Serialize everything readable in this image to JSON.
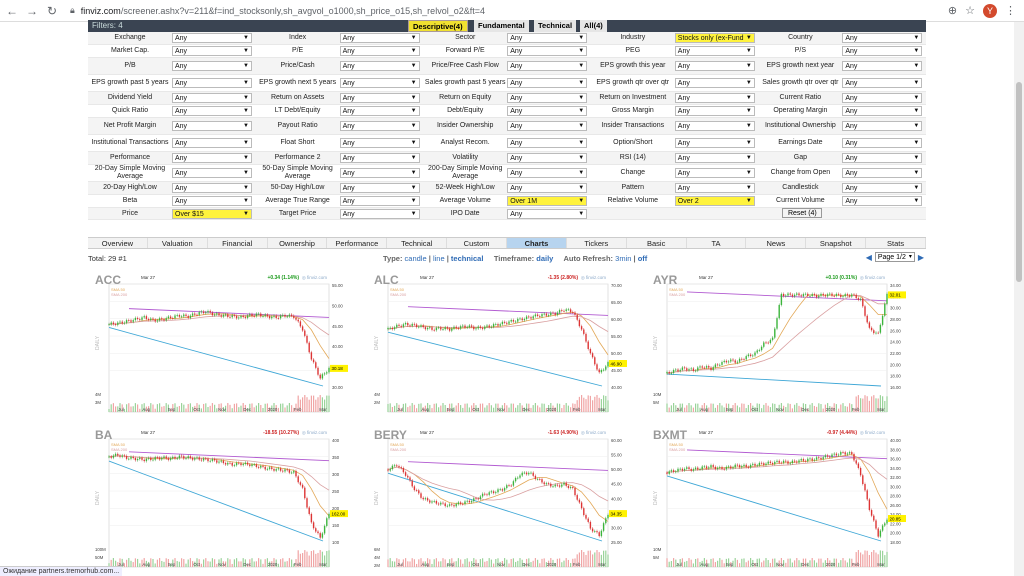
{
  "browser": {
    "url_host": "finviz.com",
    "url_path": "/screener.ashx?v=211&f=ind_stocksonly,sh_avgvol_o1000,sh_price_o15,sh_relvol_o2&ft=4",
    "avatar_letter": "Y",
    "status_text": "Ожидание partners.tremorhub.com..."
  },
  "filters_header": {
    "label": "Filters: 4",
    "tabs": [
      {
        "label": "Descriptive(4)",
        "active": true
      },
      {
        "label": "Fundamental",
        "active": false
      },
      {
        "label": "Technical",
        "active": false
      },
      {
        "label": "All(4)",
        "active": false
      }
    ]
  },
  "filter_rows": [
    [
      {
        "label": "Exchange",
        "value": "Any"
      },
      {
        "label": "Index",
        "value": "Any"
      },
      {
        "label": "Sector",
        "value": "Any"
      },
      {
        "label": "Industry",
        "value": "Stocks only (ex-Fund",
        "hl": true
      },
      {
        "label": "Country",
        "value": "Any"
      }
    ],
    [
      {
        "label": "Market Cap.",
        "value": "Any"
      },
      {
        "label": "P/E",
        "value": "Any"
      },
      {
        "label": "Forward P/E",
        "value": "Any"
      },
      {
        "label": "PEG",
        "value": "Any"
      },
      {
        "label": "P/S",
        "value": "Any"
      }
    ],
    [
      {
        "label": "P/B",
        "value": "Any"
      },
      {
        "label": "Price/Cash",
        "value": "Any"
      },
      {
        "label": "Price/Free Cash Flow",
        "value": "Any"
      },
      {
        "label": "EPS growth this year",
        "value": "Any"
      },
      {
        "label": "EPS growth next year",
        "value": "Any"
      }
    ],
    [
      {
        "label": "EPS growth past 5 years",
        "value": "Any"
      },
      {
        "label": "EPS growth next 5 years",
        "value": "Any"
      },
      {
        "label": "Sales growth past 5 years",
        "value": "Any"
      },
      {
        "label": "EPS growth qtr over qtr",
        "value": "Any"
      },
      {
        "label": "Sales growth qtr over qtr",
        "value": "Any"
      }
    ],
    [
      {
        "label": "Dividend Yield",
        "value": "Any"
      },
      {
        "label": "Return on Assets",
        "value": "Any"
      },
      {
        "label": "Return on Equity",
        "value": "Any"
      },
      {
        "label": "Return on Investment",
        "value": "Any"
      },
      {
        "label": "Current Ratio",
        "value": "Any"
      }
    ],
    [
      {
        "label": "Quick Ratio",
        "value": "Any"
      },
      {
        "label": "LT Debt/Equity",
        "value": "Any"
      },
      {
        "label": "Debt/Equity",
        "value": "Any"
      },
      {
        "label": "Gross Margin",
        "value": "Any"
      },
      {
        "label": "Operating Margin",
        "value": "Any"
      }
    ],
    [
      {
        "label": "Net Profit Margin",
        "value": "Any"
      },
      {
        "label": "Payout Ratio",
        "value": "Any"
      },
      {
        "label": "Insider Ownership",
        "value": "Any"
      },
      {
        "label": "Insider Transactions",
        "value": "Any"
      },
      {
        "label": "Institutional Ownership",
        "value": "Any"
      }
    ],
    [
      {
        "label": "Institutional Transactions",
        "value": "Any"
      },
      {
        "label": "Float Short",
        "value": "Any"
      },
      {
        "label": "Analyst Recom.",
        "value": "Any"
      },
      {
        "label": "Option/Short",
        "value": "Any"
      },
      {
        "label": "Earnings Date",
        "value": "Any"
      }
    ],
    [
      {
        "label": "Performance",
        "value": "Any"
      },
      {
        "label": "Performance 2",
        "value": "Any"
      },
      {
        "label": "Volatility",
        "value": "Any"
      },
      {
        "label": "RSI (14)",
        "value": "Any"
      },
      {
        "label": "Gap",
        "value": "Any"
      }
    ],
    [
      {
        "label": "20-Day Simple Moving Average",
        "value": "Any"
      },
      {
        "label": "50-Day Simple Moving Average",
        "value": "Any"
      },
      {
        "label": "200-Day Simple Moving Average",
        "value": "Any"
      },
      {
        "label": "Change",
        "value": "Any"
      },
      {
        "label": "Change from Open",
        "value": "Any"
      }
    ],
    [
      {
        "label": "20-Day High/Low",
        "value": "Any"
      },
      {
        "label": "50-Day High/Low",
        "value": "Any"
      },
      {
        "label": "52-Week High/Low",
        "value": "Any"
      },
      {
        "label": "Pattern",
        "value": "Any"
      },
      {
        "label": "Candlestick",
        "value": "Any"
      }
    ],
    [
      {
        "label": "Beta",
        "value": "Any"
      },
      {
        "label": "Average True Range",
        "value": "Any"
      },
      {
        "label": "Average Volume",
        "value": "Over 1M",
        "hl": true
      },
      {
        "label": "Relative Volume",
        "value": "Over 2",
        "hl": true
      },
      {
        "label": "Current Volume",
        "value": "Any"
      }
    ],
    [
      {
        "label": "Price",
        "value": "Over $15",
        "hl": true
      },
      {
        "label": "Target Price",
        "value": "Any"
      },
      {
        "label": "IPO Date",
        "value": "Any"
      }
    ]
  ],
  "reset_label": "Reset (4)",
  "view_tabs": [
    "Overview",
    "Valuation",
    "Financial",
    "Ownership",
    "Performance",
    "Technical",
    "Custom",
    "Charts",
    "Tickers",
    "Basic",
    "TA",
    "News",
    "Snapshot",
    "Stats"
  ],
  "active_view": "Charts",
  "info": {
    "total": "Total: 29 #1",
    "type_label": "Type:",
    "type_options": [
      "candle",
      "line",
      "technical"
    ],
    "type_active": "technical",
    "timeframe_label": "Timeframe:",
    "timeframe_value": "daily",
    "refresh_label": "Auto Refresh:",
    "refresh_value": "3min",
    "refresh_off": "off",
    "page": "Page 1/2"
  },
  "charts": [
    {
      "ticker": "ACC",
      "date": "Mar 27",
      "change": "+0.34 (1.14%)",
      "change_color": "#1a9a1a",
      "last": "30.18",
      "watermark": "finviz.com",
      "sma1": "SMA 50",
      "sma2": "SMA 200",
      "yticks": [
        "55.00",
        "50.00",
        "45.00",
        "40.00",
        "35.00",
        "30.00"
      ],
      "vticks": [
        "4M",
        "3M"
      ],
      "months": [
        "Jul",
        "Aug",
        "Sep",
        "Oct",
        "Nov",
        "Dec",
        "2020",
        "Feb",
        "Mar"
      ],
      "shape": [
        0.65,
        0.66,
        0.68,
        0.7,
        0.72,
        0.69,
        0.7,
        0.72,
        0.74,
        0.73,
        0.76,
        0.78,
        0.75,
        0.74,
        0.73,
        0.72,
        0.74,
        0.75,
        0.73,
        0.72,
        0.74,
        0.73,
        0.6,
        0.3,
        0.1,
        0.2
      ]
    },
    {
      "ticker": "ALC",
      "date": "Mar 27",
      "change": "-1.35 (2.80%)",
      "change_color": "#cc2222",
      "last": "46.90",
      "watermark": "finviz.com",
      "sma1": "SMA 50",
      "sma2": "SMA 200",
      "yticks": [
        "70.00",
        "65.00",
        "60.00",
        "55.00",
        "50.00",
        "45.00",
        "40.00"
      ],
      "vticks": [
        "4M",
        "2M"
      ],
      "months": [
        "Jul",
        "Aug",
        "Sep",
        "Oct",
        "Nov",
        "Dec",
        "2020",
        "Feb",
        "Mar"
      ],
      "shape": [
        0.6,
        0.63,
        0.65,
        0.64,
        0.62,
        0.6,
        0.61,
        0.6,
        0.62,
        0.63,
        0.61,
        0.62,
        0.64,
        0.66,
        0.68,
        0.7,
        0.72,
        0.74,
        0.75,
        0.76,
        0.8,
        0.78,
        0.6,
        0.35,
        0.15,
        0.25
      ]
    },
    {
      "ticker": "AYR",
      "date": "Mar 27",
      "change": "+0.10 (0.31%)",
      "change_color": "#1a9a1a",
      "last": "32.01",
      "watermark": "finviz.com",
      "sma1": "SMA 50",
      "sma2": "SMA 200",
      "yticks": [
        "34.00",
        "32.00",
        "30.00",
        "28.00",
        "26.00",
        "24.00",
        "22.00",
        "20.00",
        "18.00",
        "16.00"
      ],
      "vticks": [
        "10M",
        "5M"
      ],
      "months": [
        "Jul",
        "Aug",
        "Sep",
        "Oct",
        "Nov",
        "Dec",
        "2020",
        "Feb",
        "Mar"
      ],
      "shape": [
        0.15,
        0.18,
        0.2,
        0.18,
        0.22,
        0.2,
        0.25,
        0.28,
        0.27,
        0.32,
        0.35,
        0.45,
        0.5,
        0.95,
        0.95,
        0.95,
        0.95,
        0.94,
        0.95,
        0.95,
        0.94,
        0.95,
        0.9,
        0.6,
        0.55,
        0.95
      ]
    },
    {
      "ticker": "BA",
      "date": "Mar 27",
      "change": "-18.55 (10.27%)",
      "change_color": "#cc2222",
      "last": "162.00",
      "watermark": "finviz.com",
      "sma1": "SMA 50",
      "sma2": "SMA 200",
      "yticks": [
        "400",
        "350",
        "300",
        "250",
        "200",
        "150",
        "100"
      ],
      "vticks": [
        "100M",
        "50M"
      ],
      "months": [
        "Jul",
        "Aug",
        "Sep",
        "Oct",
        "Nov",
        "Dec",
        "2020",
        "Feb",
        "Mar"
      ],
      "shape": [
        0.88,
        0.9,
        0.87,
        0.86,
        0.85,
        0.86,
        0.87,
        0.86,
        0.88,
        0.87,
        0.86,
        0.85,
        0.84,
        0.82,
        0.8,
        0.81,
        0.8,
        0.78,
        0.76,
        0.75,
        0.74,
        0.72,
        0.55,
        0.2,
        0.05,
        0.3
      ]
    },
    {
      "ticker": "BERY",
      "date": "Mar 27",
      "change": "-1.63 (4.90%)",
      "change_color": "#cc2222",
      "last": "34.35",
      "watermark": "finviz.com",
      "sma1": "SMA 50",
      "sma2": "SMA 200",
      "yticks": [
        "60.00",
        "55.00",
        "50.00",
        "45.00",
        "40.00",
        "35.00",
        "30.00",
        "25.00"
      ],
      "vticks": [
        "6M",
        "4M",
        "2M"
      ],
      "months": [
        "Jul",
        "Aug",
        "Sep",
        "Oct",
        "Nov",
        "Dec",
        "2020",
        "Feb",
        "Mar"
      ],
      "shape": [
        0.75,
        0.8,
        0.7,
        0.55,
        0.45,
        0.42,
        0.4,
        0.38,
        0.4,
        0.42,
        0.45,
        0.5,
        0.52,
        0.55,
        0.6,
        0.7,
        0.72,
        0.65,
        0.6,
        0.58,
        0.6,
        0.55,
        0.35,
        0.15,
        0.08,
        0.3
      ]
    },
    {
      "ticker": "BXMT",
      "date": "Mar 27",
      "change": "-0.97 (4.44%)",
      "change_color": "#cc2222",
      "last": "20.85",
      "watermark": "finviz.com",
      "sma1": "SMA 50",
      "sma2": "SMA 200",
      "yticks": [
        "40.00",
        "38.00",
        "36.00",
        "34.00",
        "32.00",
        "30.00",
        "28.00",
        "26.00",
        "24.00",
        "22.00",
        "20.00",
        "18.00"
      ],
      "vticks": [
        "10M",
        "5M"
      ],
      "months": [
        "Jul",
        "Aug",
        "Sep",
        "Oct",
        "Nov",
        "Dec",
        "2020",
        "Feb",
        "Mar"
      ],
      "shape": [
        0.72,
        0.74,
        0.76,
        0.75,
        0.77,
        0.78,
        0.76,
        0.77,
        0.79,
        0.78,
        0.8,
        0.81,
        0.82,
        0.83,
        0.82,
        0.84,
        0.85,
        0.86,
        0.88,
        0.9,
        0.92,
        0.91,
        0.7,
        0.35,
        0.08,
        0.25
      ]
    }
  ]
}
